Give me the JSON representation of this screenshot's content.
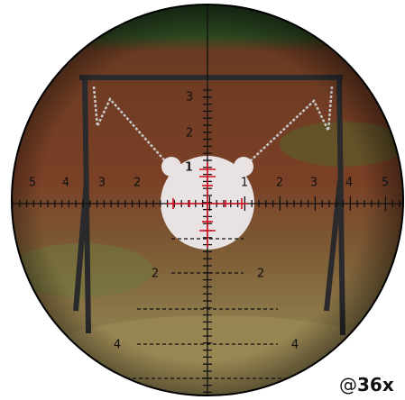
{
  "magnification": {
    "prefix": "@",
    "value": "36x"
  },
  "reticle": {
    "horizontal_left": [
      "5",
      "4",
      "3",
      "2",
      "1"
    ],
    "horizontal_right": [
      "1",
      "2",
      "3",
      "4",
      "5"
    ],
    "vertical_up": [
      "3",
      "2",
      "1"
    ],
    "lower_left": [
      "2",
      "4"
    ],
    "lower_right": [
      "2",
      "4"
    ]
  }
}
